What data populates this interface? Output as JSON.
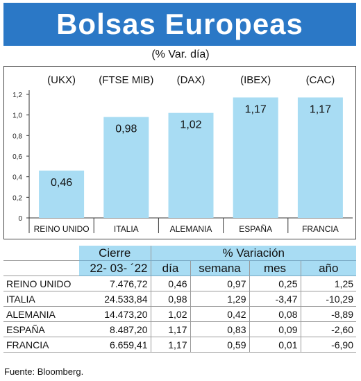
{
  "header": {
    "title": "Bolsas Europeas",
    "subtitle": "(% Var. día)"
  },
  "colors": {
    "title_bg": "#2b78c6",
    "bar": "#a8dcf3",
    "table_header_bg": "#a8dcf3"
  },
  "chart_data": {
    "type": "bar",
    "categories": [
      "REINO UNIDO",
      "ITALIA",
      "ALEMANIA",
      "ESPAÑA",
      "FRANCIA"
    ],
    "index_labels": [
      "(UKX)",
      "(FTSE MIB)",
      "(DAX)",
      "(IBEX)",
      "(CAC)"
    ],
    "values": [
      0.46,
      0.98,
      1.02,
      1.17,
      1.17
    ],
    "value_labels": [
      "0,46",
      "0,98",
      "1,02",
      "1,17",
      "1,17"
    ],
    "yticks": [
      0,
      0.2,
      0.4,
      0.6,
      0.8,
      1.0,
      1.2
    ],
    "ytick_labels": [
      "0",
      "0,2",
      "0,4",
      "0,6",
      "0,8",
      "1,0",
      "1,2"
    ],
    "ylim": [
      0,
      1.2
    ],
    "grid": false,
    "legend": "none"
  },
  "table": {
    "group_headers": {
      "cierre": "Cierre",
      "variacion": "% Variación"
    },
    "columns": {
      "fecha": "22- 03- ´22",
      "dia": "día",
      "semana": "semana",
      "mes": "mes",
      "ano": "año"
    },
    "rows": [
      {
        "pais": "REINO UNIDO",
        "cierre": "7.476,72",
        "dia": "0,46",
        "semana": "0,97",
        "mes": "0,25",
        "ano": "1,25"
      },
      {
        "pais": "ITALIA",
        "cierre": "24.533,84",
        "dia": "0,98",
        "semana": "1,29",
        "mes": "-3,47",
        "ano": "-10,29"
      },
      {
        "pais": "ALEMANIA",
        "cierre": "14.473,20",
        "dia": "1,02",
        "semana": "0,42",
        "mes": "0,08",
        "ano": "-8,89"
      },
      {
        "pais": "ESPAÑA",
        "cierre": "8.487,20",
        "dia": "1,17",
        "semana": "0,83",
        "mes": "0,09",
        "ano": "-2,60"
      },
      {
        "pais": "FRANCIA",
        "cierre": "6.659,41",
        "dia": "1,17",
        "semana": "0,59",
        "mes": "0,01",
        "ano": "-6,90"
      }
    ]
  },
  "footer": {
    "source": "Fuente: Bloomberg."
  }
}
